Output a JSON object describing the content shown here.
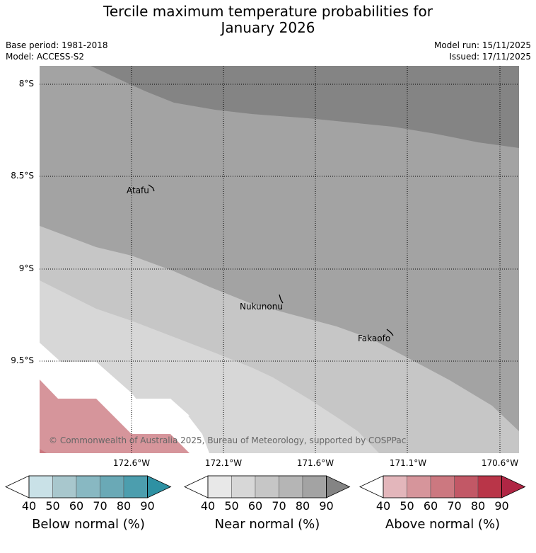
{
  "title_line1": "Tercile maximum temperature probabilities for",
  "title_line2": "January 2026",
  "base_period": "Base period: 1981-2018",
  "model": "Model: ACCESS-S2",
  "model_run": "Model run: 15/11/2025",
  "issued": "Issued: 17/11/2025",
  "lat_labels": [
    "8°S",
    "8.5°S",
    "9°S",
    "9.5°S"
  ],
  "lon_labels": [
    "172.6°W",
    "172.1°W",
    "171.6°W",
    "171.1°W",
    "170.6°W"
  ],
  "places": [
    "Atafu",
    "Nukunonu",
    "Fakaofo"
  ],
  "copyright": "© Commonwealth of Australia 2025, Bureau of Meteorology, supported by COSPPac",
  "colorbars": [
    {
      "title": "Below normal (%)",
      "ticks": [
        "40",
        "50",
        "60",
        "70",
        "80",
        "90"
      ],
      "colors": [
        "#c9e1e7",
        "#a8c7cd",
        "#88b8c2",
        "#6aa9b6",
        "#4c9eae",
        "#2e91a3"
      ]
    },
    {
      "title": "Near normal (%)",
      "ticks": [
        "40",
        "50",
        "60",
        "70",
        "80",
        "90"
      ],
      "colors": [
        "#e8e8e8",
        "#d7d7d7",
        "#c6c6c6",
        "#b5b5b5",
        "#a3a3a3",
        "#848484"
      ]
    },
    {
      "title": "Above normal (%)",
      "ticks": [
        "40",
        "50",
        "60",
        "70",
        "80",
        "90"
      ],
      "colors": [
        "#e3b6bb",
        "#d6959b",
        "#cc7880",
        "#c25866",
        "#b93548",
        "#b02644"
      ]
    }
  ],
  "colors": {
    "near_80_90": "#848484",
    "near_70_80": "#a3a3a3",
    "near_60_70": "#c6c6c6",
    "near_50_60": "#d7d7d7",
    "above_50_60": "#d6959b",
    "above_60_70": "#cc7880"
  }
}
